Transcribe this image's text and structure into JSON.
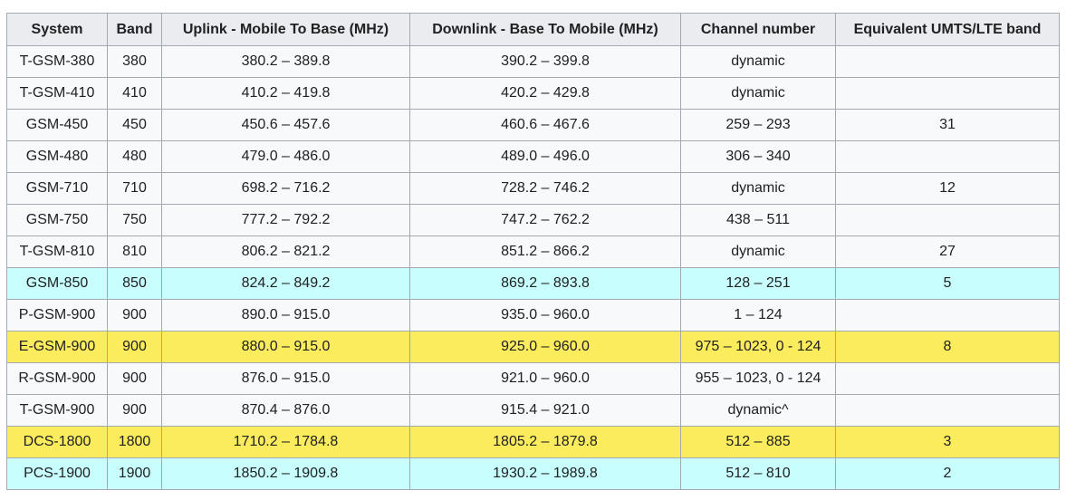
{
  "table": {
    "headers": [
      "System",
      "Band",
      "Uplink - Mobile To Base (MHz)",
      "Downlink - Base To Mobile (MHz)",
      "Channel number",
      "Equivalent UMTS/LTE band"
    ],
    "row_colors": {
      "default": "#f8f9fa",
      "cyan": "#c8fffe",
      "yellow": "#fbec5d",
      "header": "#eaecf0"
    },
    "rows": [
      {
        "highlight": "none",
        "cells": [
          "T-GSM-380",
          "380",
          "380.2 – 389.8",
          "390.2 – 399.8",
          "dynamic",
          ""
        ]
      },
      {
        "highlight": "none",
        "cells": [
          "T-GSM-410",
          "410",
          "410.2 – 419.8",
          "420.2 – 429.8",
          "dynamic",
          ""
        ]
      },
      {
        "highlight": "none",
        "cells": [
          "GSM-450",
          "450",
          "450.6 – 457.6",
          "460.6 – 467.6",
          "259 – 293",
          "31"
        ]
      },
      {
        "highlight": "none",
        "cells": [
          "GSM-480",
          "480",
          "479.0 – 486.0",
          "489.0 – 496.0",
          "306 – 340",
          ""
        ]
      },
      {
        "highlight": "none",
        "cells": [
          "GSM-710",
          "710",
          "698.2 – 716.2",
          "728.2 – 746.2",
          "dynamic",
          "12"
        ]
      },
      {
        "highlight": "none",
        "cells": [
          "GSM-750",
          "750",
          "777.2 – 792.2",
          "747.2 – 762.2",
          "438 – 511",
          ""
        ]
      },
      {
        "highlight": "none",
        "cells": [
          "T-GSM-810",
          "810",
          "806.2 – 821.2",
          "851.2 – 866.2",
          "dynamic",
          "27"
        ]
      },
      {
        "highlight": "cyan",
        "cells": [
          "GSM-850",
          "850",
          "824.2 – 849.2",
          "869.2 – 893.8",
          "128 – 251",
          "5"
        ]
      },
      {
        "highlight": "none",
        "cells": [
          "P-GSM-900",
          "900",
          "890.0 – 915.0",
          "935.0 – 960.0",
          "1 – 124",
          ""
        ]
      },
      {
        "highlight": "yellow",
        "cells": [
          "E-GSM-900",
          "900",
          "880.0 – 915.0",
          "925.0 – 960.0",
          "975 – 1023, 0 - 124",
          "8"
        ]
      },
      {
        "highlight": "none",
        "cells": [
          "R-GSM-900",
          "900",
          "876.0 – 915.0",
          "921.0 – 960.0",
          "955 – 1023, 0 - 124",
          ""
        ]
      },
      {
        "highlight": "none",
        "cells": [
          "T-GSM-900",
          "900",
          "870.4 – 876.0",
          "915.4 – 921.0",
          "dynamic^",
          ""
        ]
      },
      {
        "highlight": "yellow",
        "cells": [
          "DCS-1800",
          "1800",
          "1710.2 – 1784.8",
          "1805.2 – 1879.8",
          "512 – 885",
          "3"
        ]
      },
      {
        "highlight": "cyan",
        "cells": [
          "PCS-1900",
          "1900",
          "1850.2 – 1909.8",
          "1930.2 – 1989.8",
          "512 – 810",
          "2"
        ]
      }
    ]
  }
}
